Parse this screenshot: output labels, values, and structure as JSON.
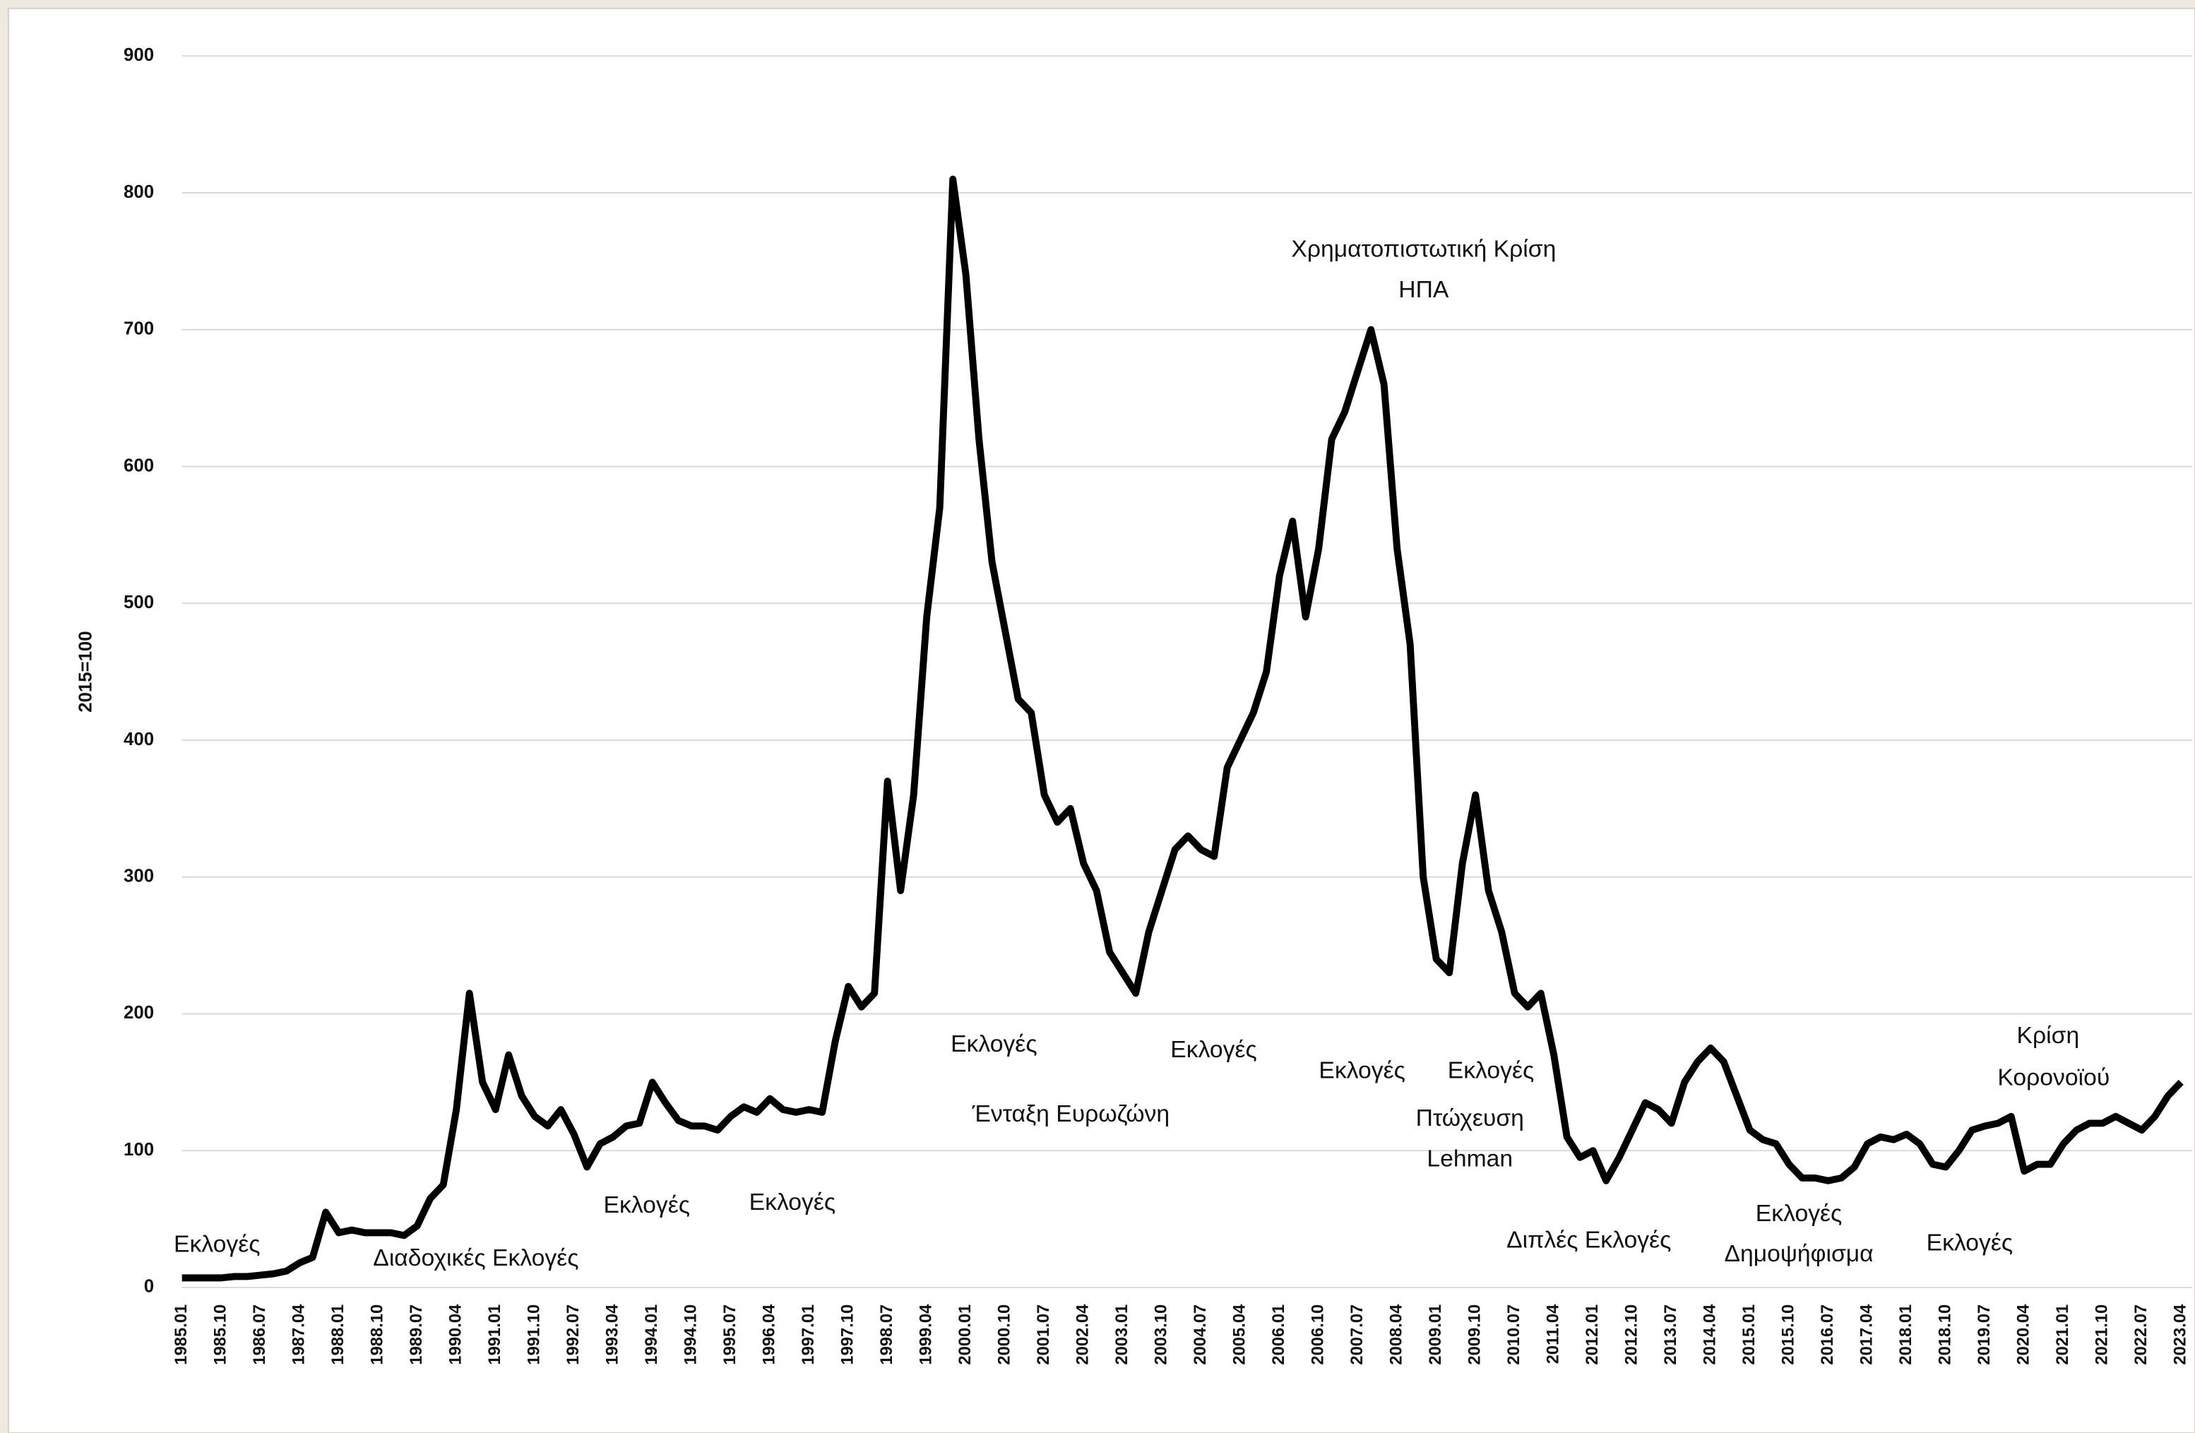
{
  "chart_data": {
    "type": "line",
    "y_label": "2015=100",
    "categories": [
      "1985.01",
      null,
      null,
      "1985.10",
      null,
      null,
      "1986.07",
      null,
      null,
      "1987.04",
      null,
      null,
      "1988.01",
      null,
      null,
      "1988.10",
      null,
      null,
      "1989.07",
      null,
      null,
      "1990.04",
      null,
      null,
      "1991.01",
      null,
      null,
      "1991.10",
      null,
      null,
      "1992.07",
      null,
      null,
      "1993.04",
      null,
      null,
      "1994.01",
      null,
      null,
      "1994.10",
      null,
      null,
      "1995.07",
      null,
      null,
      "1996.04",
      null,
      null,
      "1997.01",
      null,
      null,
      "1997.10",
      null,
      null,
      "1998.07",
      null,
      null,
      "1999.04",
      null,
      null,
      "2000.01",
      null,
      null,
      "2000.10",
      null,
      null,
      "2001.07",
      null,
      null,
      "2002.04",
      null,
      null,
      "2003.01",
      null,
      null,
      "2003.10",
      null,
      null,
      "2004.07",
      null,
      null,
      "2005.04",
      null,
      null,
      "2006.01",
      null,
      null,
      "2006.10",
      null,
      null,
      "2007.07",
      null,
      null,
      "2008.04",
      null,
      null,
      "2009.01",
      null,
      null,
      "2009.10",
      null,
      null,
      "2010.07",
      null,
      null,
      "2011.04",
      null,
      null,
      "2012.01",
      null,
      null,
      "2012.10",
      null,
      null,
      "2013.07",
      null,
      null,
      "2014.04",
      null,
      null,
      "2015.01",
      null,
      null,
      "2015.10",
      null,
      null,
      "2016.07",
      null,
      null,
      "2017.04",
      null,
      null,
      "2018.01",
      null,
      null,
      "2018.10",
      null,
      null,
      "2019.07",
      null,
      null,
      "2020.04",
      null,
      null,
      "2021.01",
      null,
      null,
      "2021.10",
      null,
      null,
      "2022.07",
      null,
      null,
      "2023.04"
    ],
    "series": [
      {
        "name": "2015=100",
        "color": "#000000",
        "values": [
          7,
          7,
          7,
          7,
          8,
          8,
          9,
          10,
          12,
          18,
          22,
          55,
          40,
          42,
          40,
          40,
          40,
          38,
          45,
          65,
          75,
          130,
          215,
          150,
          130,
          170,
          140,
          125,
          118,
          130,
          112,
          88,
          105,
          110,
          118,
          120,
          150,
          135,
          122,
          118,
          118,
          115,
          125,
          132,
          128,
          138,
          130,
          128,
          130,
          128,
          180,
          220,
          205,
          215,
          370,
          290,
          360,
          490,
          570,
          810,
          740,
          620,
          530,
          480,
          430,
          420,
          360,
          340,
          350,
          310,
          290,
          245,
          230,
          215,
          260,
          290,
          320,
          330,
          320,
          315,
          380,
          400,
          420,
          450,
          520,
          560,
          490,
          540,
          620,
          640,
          670,
          700,
          660,
          540,
          470,
          300,
          240,
          230,
          310,
          360,
          290,
          260,
          215,
          205,
          215,
          170,
          110,
          95,
          100,
          78,
          95,
          115,
          135,
          130,
          120,
          150,
          165,
          175,
          165,
          140,
          115,
          108,
          105,
          90,
          80,
          80,
          78,
          80,
          88,
          105,
          110,
          108,
          112,
          105,
          90,
          88,
          100,
          115,
          118,
          120,
          125,
          85,
          90,
          90,
          105,
          115,
          120,
          120,
          125,
          120,
          115,
          125,
          140,
          150
        ]
      }
    ],
    "ylim": [
      0,
      900
    ],
    "yticks": [
      0,
      100,
      200,
      300,
      400,
      500,
      600,
      700,
      800,
      900
    ],
    "grid": true,
    "annotations": [
      "Εκλογές",
      "Διαδοχικές Εκλογές",
      "Εκλογές",
      "Εκλογές",
      "Εκλογές",
      "Ένταξη Ευρωζώνη",
      "Εκλογές",
      "Χρηματοπιστωτική Κρίση",
      "ΗΠΑ",
      "Εκλογές",
      "Εκλογές",
      "Πτώχευση",
      "Lehman",
      "Διπλές Εκλογές",
      "Εκλογές",
      "Δημοψήφισμα",
      "Εκλογές",
      "Κρίση",
      "Κορονοϊού"
    ]
  }
}
